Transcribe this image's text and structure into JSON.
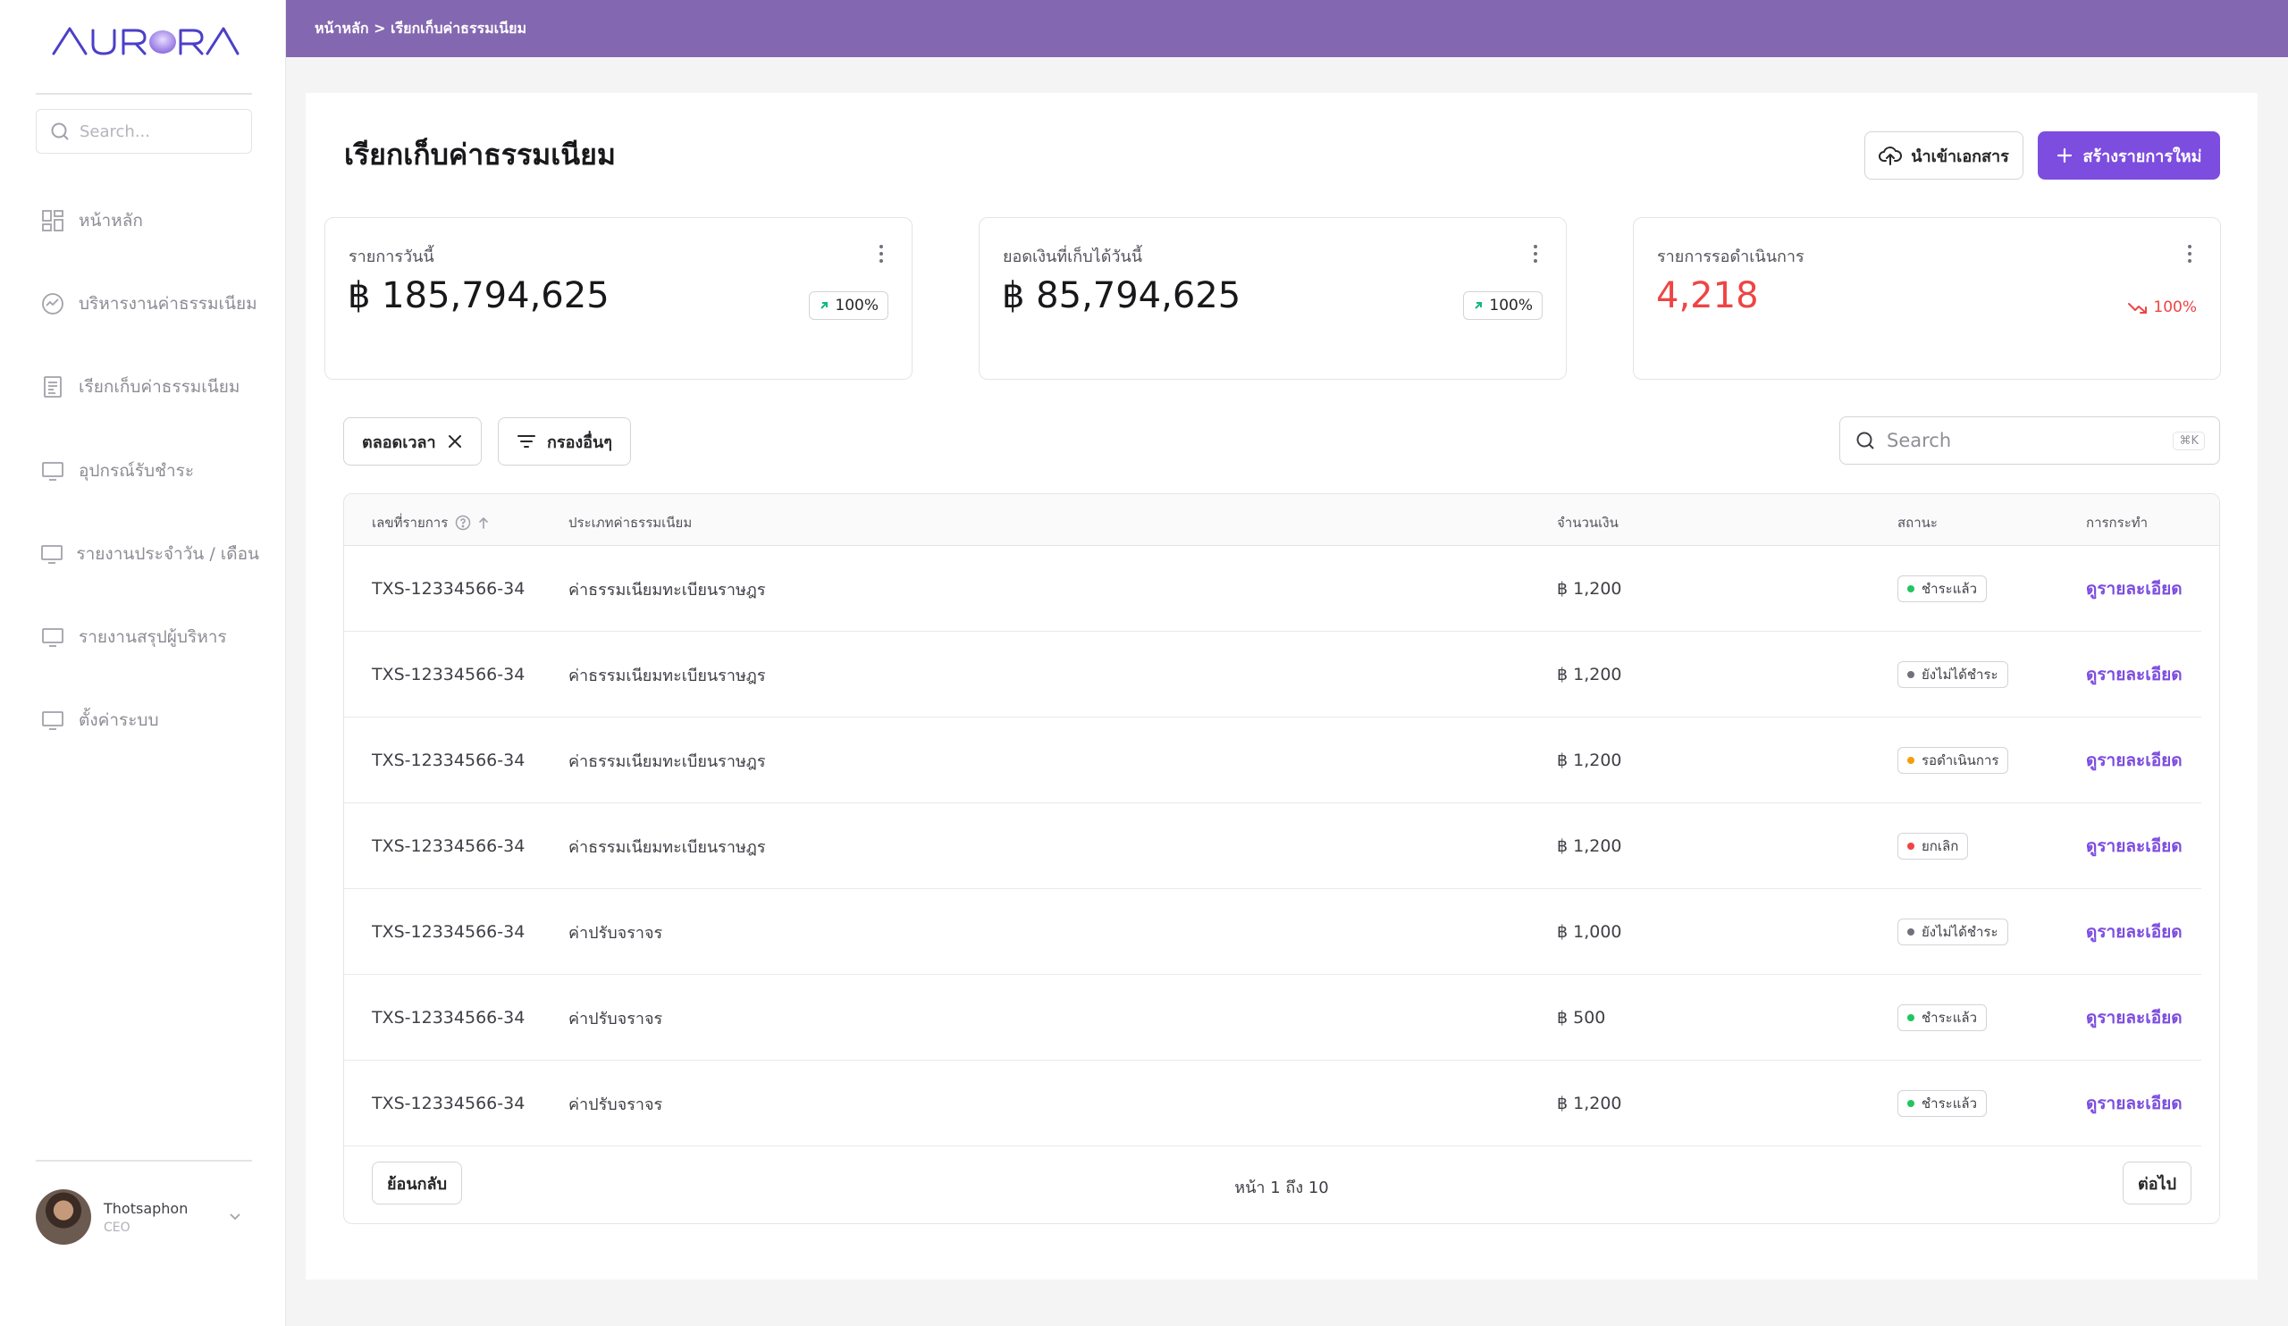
{
  "app": {
    "logo_text": "AURORA"
  },
  "sidebar": {
    "search_placeholder": "Search...",
    "items": [
      {
        "label": "หน้าหลัก",
        "icon": "grid-icon"
      },
      {
        "label": "บริหารงานค่าธรรมเนียม",
        "icon": "chart-circle-icon"
      },
      {
        "label": "เรียกเก็บค่าธรรมเนียม",
        "icon": "document-icon"
      },
      {
        "label": "อุปกรณ์รับชำระ",
        "icon": "monitor-icon"
      },
      {
        "label": "รายงานประจำวัน / เดือน",
        "icon": "monitor-icon"
      },
      {
        "label": "รายงานสรุปผู้บริหาร",
        "icon": "monitor-icon"
      },
      {
        "label": "ตั้งค่าระบบ",
        "icon": "monitor-icon"
      }
    ],
    "user": {
      "name": "Thotsaphon",
      "role": "CEO"
    }
  },
  "topbar": {
    "breadcrumb": "หน้าหลัก > เรียกเก็บค่าธรรมเนียม"
  },
  "page": {
    "title": "เรียกเก็บค่าธรรมเนียม",
    "import_label": "นำเข้าเอกสาร",
    "create_label": "สร้างรายการใหม่"
  },
  "stats": [
    {
      "label": "รายการวันนี้",
      "value": "฿ 185,794,625",
      "trend": "100%",
      "direction": "up"
    },
    {
      "label": "ยอดเงินที่เก็บได้วันนี้",
      "value": "฿ 85,794,625",
      "trend": "100%",
      "direction": "up"
    },
    {
      "label": "รายการรอดำเนินการ",
      "value": "4,218",
      "trend": "100%",
      "direction": "down"
    }
  ],
  "filters": {
    "time_chip": "ตลอดเวลา",
    "more_filters": "กรองอื่นๆ",
    "search_placeholder": "Search",
    "search_shortcut": "⌘K"
  },
  "table": {
    "columns": {
      "id": "เลขที่รายการ",
      "type": "ประเภทค่าธรรมเนียม",
      "amount": "จำนวนเงิน",
      "status": "สถานะ",
      "action": "การกระทำ"
    },
    "rows": [
      {
        "id": "TXS-12334566-34",
        "type": "ค่าธรรมเนียมทะเบียนราษฎร",
        "amount": "฿ 1,200",
        "status": "ชำระแล้ว",
        "status_color": "#22c55e",
        "action": "ดูรายละเอียด"
      },
      {
        "id": "TXS-12334566-34",
        "type": "ค่าธรรมเนียมทะเบียนราษฎร",
        "amount": "฿ 1,200",
        "status": "ยังไม่ได้ชำระ",
        "status_color": "#71717a",
        "action": "ดูรายละเอียด"
      },
      {
        "id": "TXS-12334566-34",
        "type": "ค่าธรรมเนียมทะเบียนราษฎร",
        "amount": "฿ 1,200",
        "status": "รอดำเนินการ",
        "status_color": "#f59e0b",
        "action": "ดูรายละเอียด"
      },
      {
        "id": "TXS-12334566-34",
        "type": "ค่าธรรมเนียมทะเบียนราษฎร",
        "amount": "฿ 1,200",
        "status": "ยกเลิก",
        "status_color": "#ef4444",
        "action": "ดูรายละเอียด"
      },
      {
        "id": "TXS-12334566-34",
        "type": "ค่าปรับจราจร",
        "amount": "฿ 1,000",
        "status": "ยังไม่ได้ชำระ",
        "status_color": "#71717a",
        "action": "ดูรายละเอียด"
      },
      {
        "id": "TXS-12334566-34",
        "type": "ค่าปรับจราจร",
        "amount": "฿ 500",
        "status": "ชำระแล้ว",
        "status_color": "#22c55e",
        "action": "ดูรายละเอียด"
      },
      {
        "id": "TXS-12334566-34",
        "type": "ค่าปรับจราจร",
        "amount": "฿ 1,200",
        "status": "ชำระแล้ว",
        "status_color": "#22c55e",
        "action": "ดูรายละเอียด"
      }
    ]
  },
  "pagination": {
    "prev_label": "ย้อนกลับ",
    "info": "หน้า 1 ถึง 10",
    "next_label": "ต่อไป"
  },
  "colors": {
    "brand": "#8467b1",
    "primary": "#7c4ddf",
    "danger": "#ef4444"
  }
}
